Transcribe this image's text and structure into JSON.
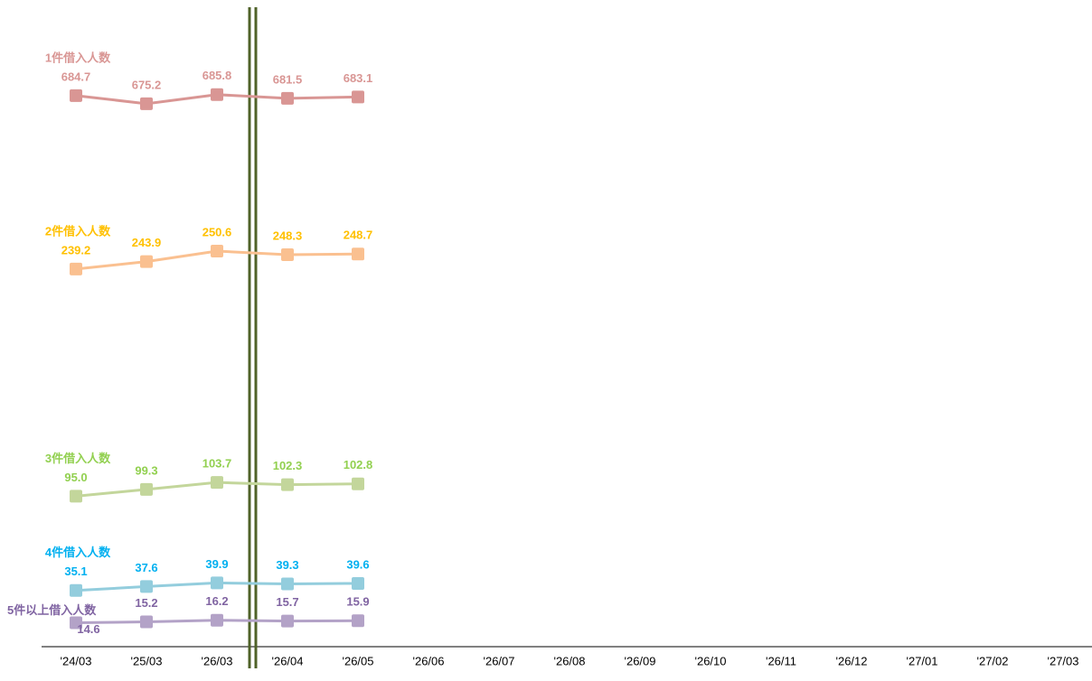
{
  "chart_data": {
    "type": "line",
    "categories": [
      "'24/03",
      "'25/03",
      "'26/03",
      "'26/04",
      "'26/05",
      "'26/06",
      "'26/07",
      "'26/08",
      "'26/09",
      "'26/10",
      "'26/11",
      "'26/12",
      "'27/01",
      "'27/02",
      "'27/03"
    ],
    "ylim": [
      0,
      410
    ],
    "series": [
      {
        "name": "1件借入人数",
        "color": "#d99694",
        "label_color": "#d99694",
        "ylim": [
          44,
          796
        ],
        "values": [
          684.7,
          675.2,
          685.8,
          681.5,
          683.1,
          null,
          null,
          null,
          null,
          null,
          null,
          null,
          null,
          null,
          null
        ]
      },
      {
        "name": "2件借入人数",
        "color": "#fac090",
        "label_color": "#ffc000",
        "values": [
          239.2,
          243.9,
          250.6,
          248.3,
          248.7,
          null,
          null,
          null,
          null,
          null,
          null,
          null,
          null,
          null,
          null
        ]
      },
      {
        "name": "3件借入人数",
        "color": "#c3d69b",
        "label_color": "#92d050",
        "values": [
          95.0,
          99.3,
          103.7,
          102.3,
          102.8,
          null,
          null,
          null,
          null,
          null,
          null,
          null,
          null,
          null,
          null
        ],
        "value_labels": [
          "95.0",
          "99.3",
          "103.7",
          "102.3",
          "102.8",
          null,
          null,
          null,
          null,
          null,
          null,
          null,
          null,
          null,
          null
        ]
      },
      {
        "name": "4件借入人数",
        "color": "#93cddd",
        "label_color": "#00b0f0",
        "values": [
          35.1,
          37.6,
          39.9,
          39.3,
          39.6,
          null,
          null,
          null,
          null,
          null,
          null,
          null,
          null,
          null,
          null
        ]
      },
      {
        "name": "5件以上借入人数",
        "color": "#b3a2c7",
        "label_color": "#8064a2",
        "values": [
          14.6,
          15.2,
          16.2,
          15.7,
          15.9,
          null,
          null,
          null,
          null,
          null,
          null,
          null,
          null,
          null,
          null
        ]
      }
    ]
  }
}
